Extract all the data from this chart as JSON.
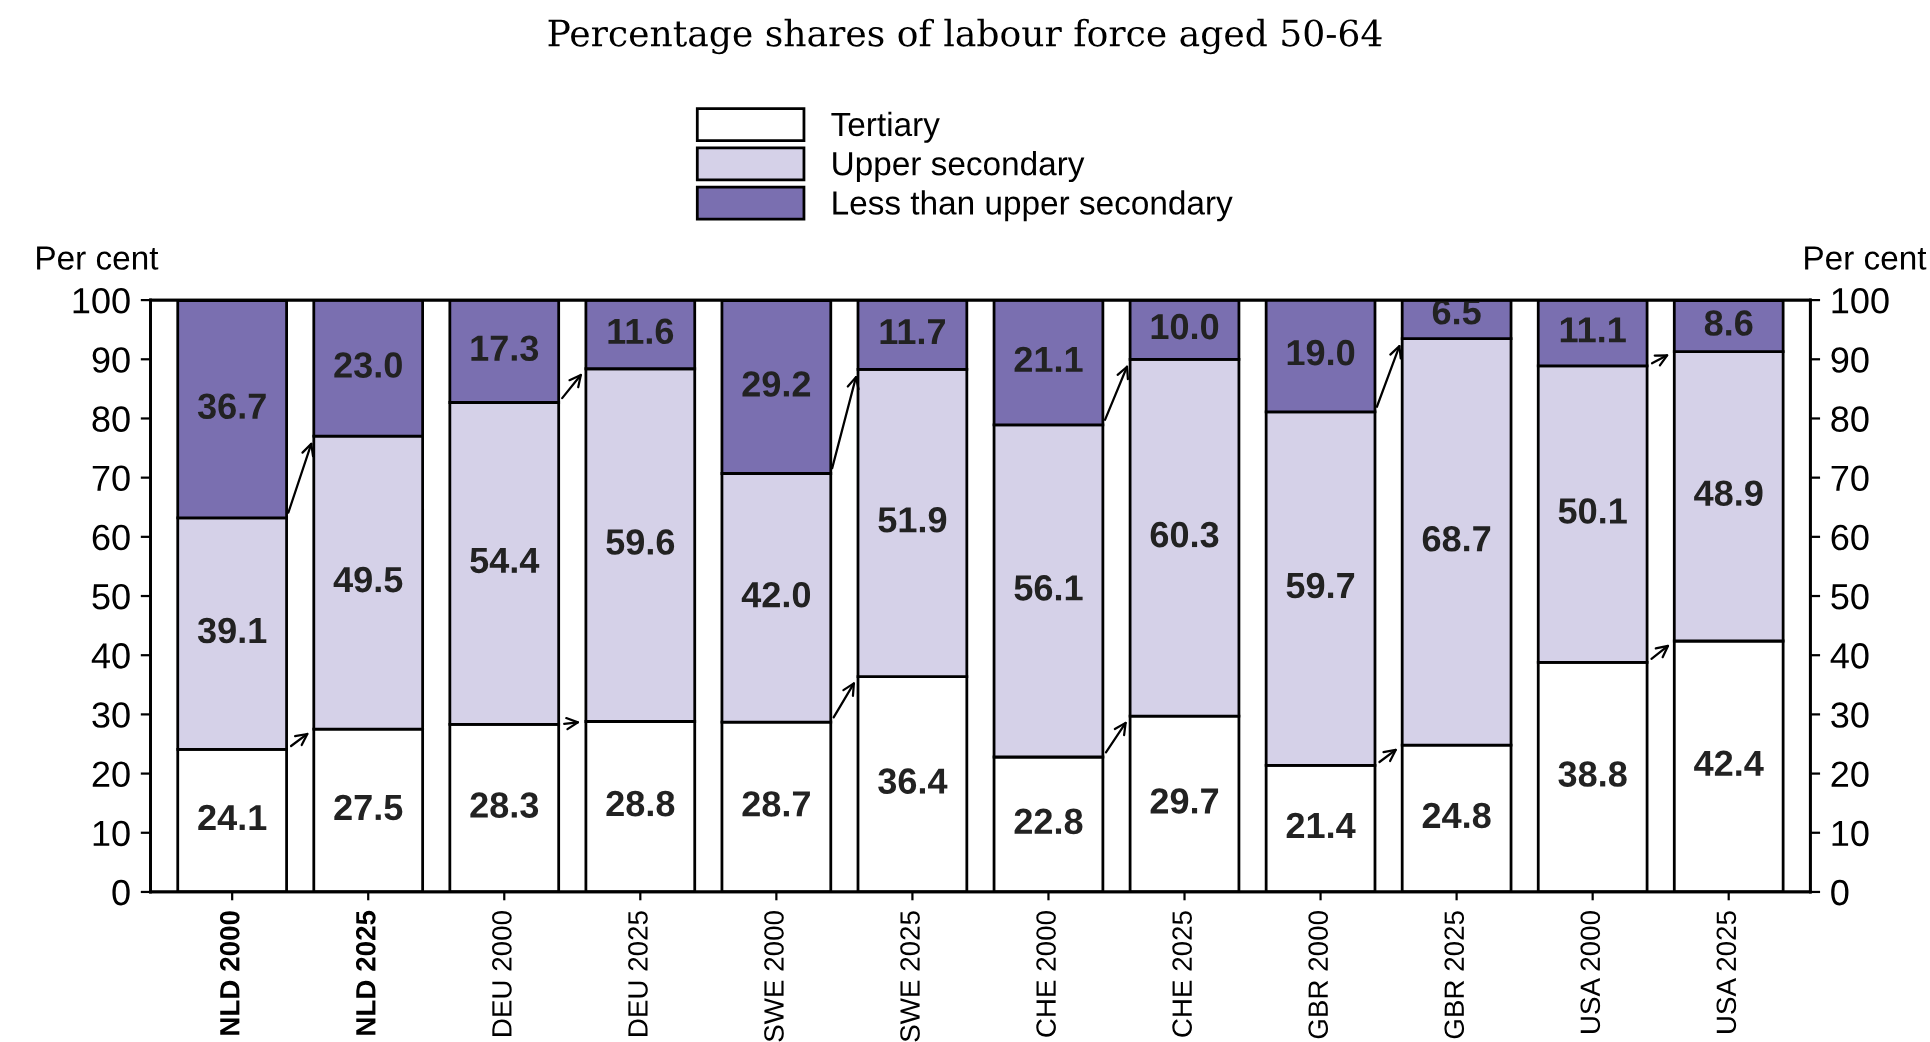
{
  "chart_data": {
    "type": "bar",
    "stacked": true,
    "title": "Percentage shares of labour force aged 50-64",
    "ylabel": "Per cent",
    "y2label": "Per cent",
    "categories": [
      "NLD 2000",
      "NLD 2025",
      "DEU 2000",
      "DEU 2025",
      "SWE 2000",
      "SWE 2025",
      "CHE 2000",
      "CHE 2025",
      "GBR 2000",
      "GBR 2025",
      "USA 2000",
      "USA 2025"
    ],
    "series": [
      {
        "name": "Tertiary",
        "color": "#ffffff",
        "values": [
          24.1,
          27.5,
          28.3,
          28.8,
          28.7,
          36.4,
          22.8,
          29.7,
          21.4,
          24.8,
          38.8,
          42.4
        ],
        "value_labels": [
          "24.1",
          "27.5",
          "28.3",
          "28.8",
          "28.7",
          "36.4",
          "22.8",
          "29.7",
          "21.4",
          "24.8",
          "38.8",
          "42.4"
        ]
      },
      {
        "name": "Upper secondary",
        "color": "#d5d1e8",
        "values": [
          39.1,
          49.5,
          54.4,
          59.6,
          42.0,
          51.9,
          56.1,
          60.3,
          59.7,
          68.7,
          50.1,
          48.9
        ],
        "value_labels": [
          "39.1",
          "49.5",
          "54.4",
          "59.6",
          "42.0",
          "51.9",
          "56.1",
          "60.3",
          "59.7",
          "68.7",
          "50.1",
          "48.9"
        ]
      },
      {
        "name": "Less than upper secondary",
        "color": "#7a6fb0",
        "values": [
          36.7,
          23.0,
          17.3,
          11.6,
          29.2,
          11.7,
          21.1,
          10.0,
          19.0,
          6.5,
          11.1,
          8.6
        ],
        "value_labels": [
          "36.7",
          "23.0",
          "17.3",
          "11.6",
          "29.2",
          "11.7",
          "21.1",
          "10.0",
          "19.0",
          "6.5",
          "11.1",
          "8.6"
        ]
      }
    ],
    "ylim": [
      0,
      100
    ],
    "yticks": [
      0,
      10,
      20,
      30,
      40,
      50,
      60,
      70,
      80,
      90,
      100
    ],
    "y2lim": [
      0,
      100
    ],
    "y2ticks": [
      0,
      10,
      20,
      30,
      40,
      50,
      60,
      70,
      80,
      90,
      100
    ],
    "legend": "top",
    "grid": false
  }
}
